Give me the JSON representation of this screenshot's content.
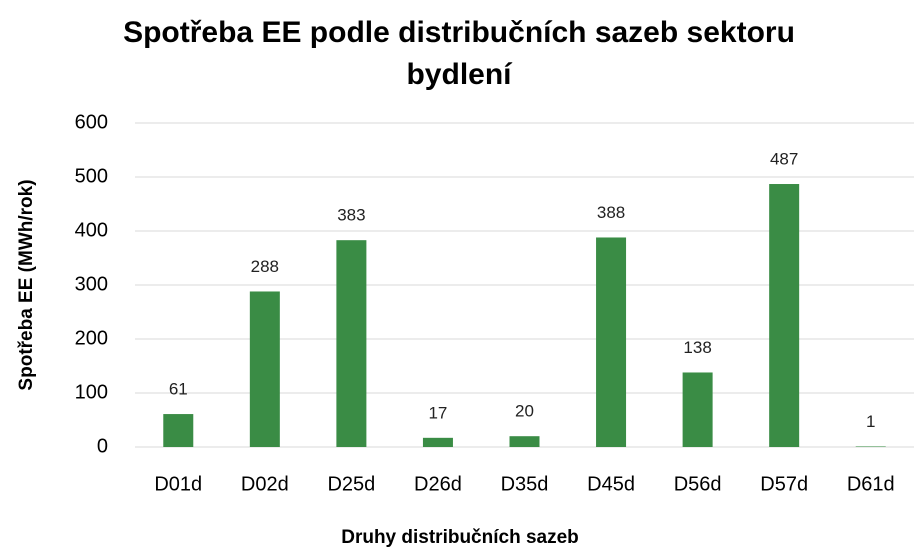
{
  "chart_data": {
    "type": "bar",
    "title": "Spotřeba EE podle distribučních sazeb sektoru bydlení",
    "x_label": "Druhy distribučních sazeb",
    "y_label": "Spotřeba EE (MWh/rok)",
    "categories": [
      "D01d",
      "D02d",
      "D25d",
      "D26d",
      "D35d",
      "D45d",
      "D56d",
      "D57d",
      "D61d"
    ],
    "values": [
      61,
      288,
      383,
      17,
      20,
      388,
      138,
      487,
      1
    ],
    "color": "#3a8c45",
    "ylim": [
      0,
      600
    ],
    "yticks": [
      0,
      100,
      200,
      300,
      400,
      500,
      600
    ],
    "grid": true
  }
}
